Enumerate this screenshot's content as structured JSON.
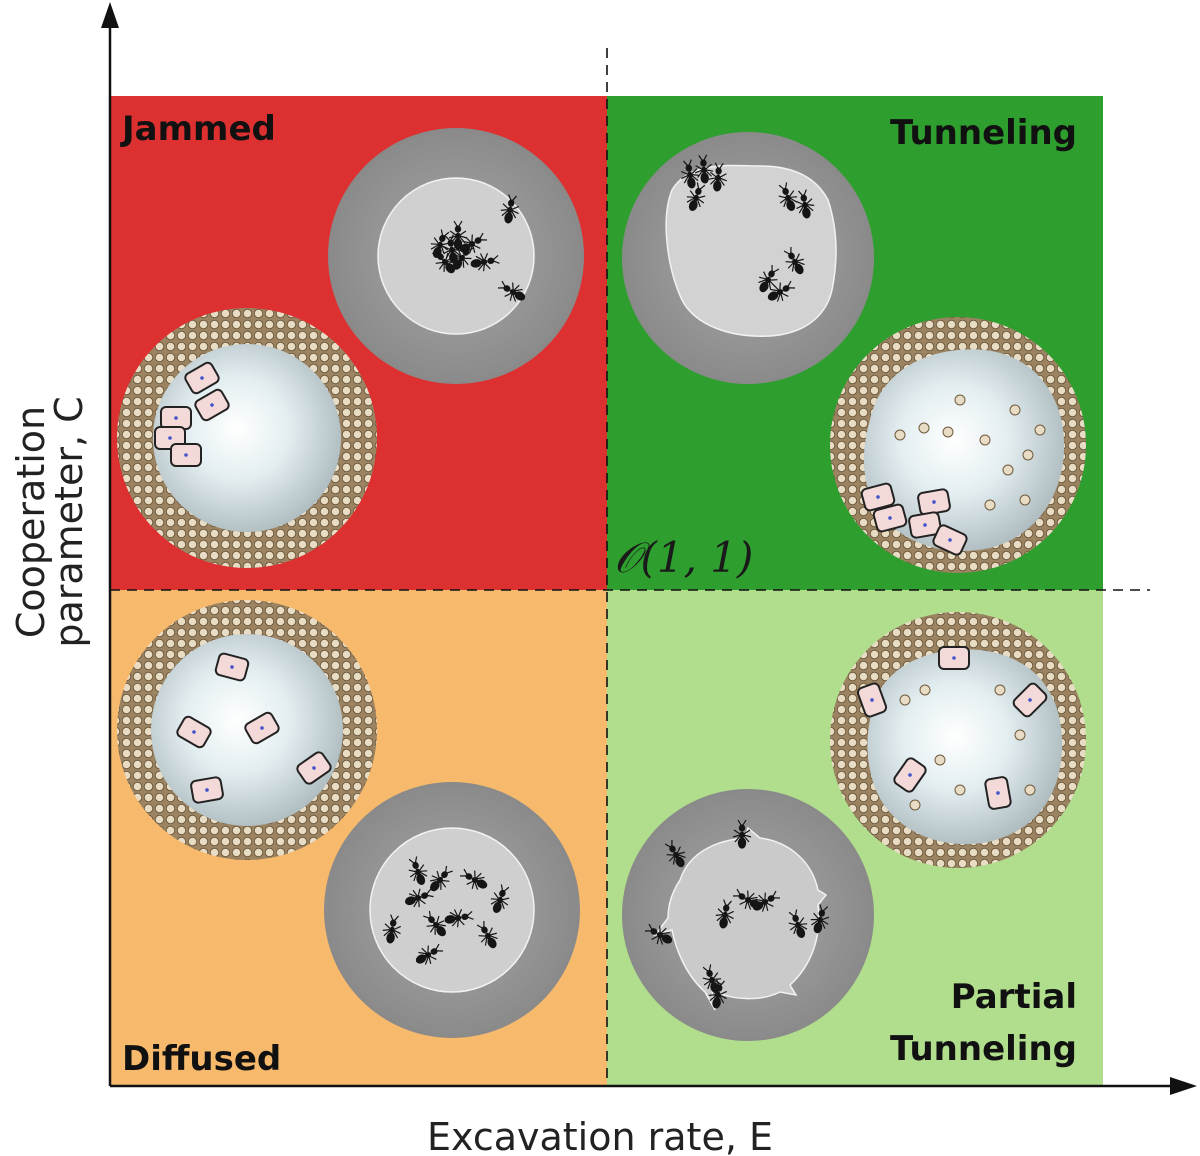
{
  "figure": {
    "x_axis_label": "Excavation rate, E",
    "y_axis_label_line1": "Cooperation",
    "y_axis_label_line2": "parameter, C",
    "origin_label": "𝒪(1, 1)"
  },
  "quadrants": {
    "top_left": {
      "label": "Jammed",
      "color": "#dd3030"
    },
    "top_right": {
      "label": "Tunneling",
      "color": "#2e9e2e"
    },
    "bottom_left": {
      "label": "Diffused",
      "color": "#f7b96c"
    },
    "bottom_right": {
      "label_line1": "Partial",
      "label_line2": "Tunneling",
      "color": "#b0de8c"
    }
  },
  "colors": {
    "ant_dish": "#9a9a9a",
    "ant_dish_inner": "#c4c4c4",
    "robot_dish_rim": "#b49c78",
    "robot_dish_floor": "#dbe6ea",
    "robot_body": "#f4d9d9",
    "ant": "#1b1b1b"
  }
}
